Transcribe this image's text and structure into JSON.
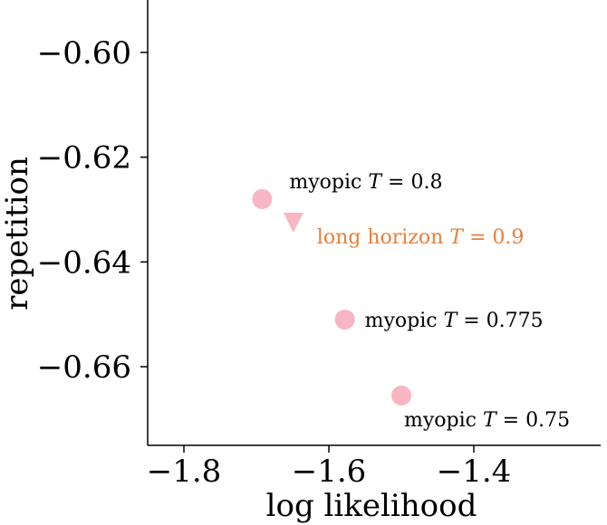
{
  "chart_data": {
    "type": "scatter",
    "xlabel": "log likelihood",
    "ylabel": "repetition",
    "xlim": [
      -1.85,
      -1.225
    ],
    "ylim": [
      -0.675,
      -0.59
    ],
    "xticks": [
      -1.8,
      -1.6,
      -1.4
    ],
    "xtick_labels": [
      "−1.8",
      "−1.6",
      "−1.4"
    ],
    "yticks": [
      -0.6,
      -0.62,
      -0.64,
      -0.66
    ],
    "ytick_labels": [
      "−0.60",
      "−0.62",
      "−0.64",
      "−0.66"
    ],
    "grid": false,
    "points": [
      {
        "x": -1.692,
        "y": -0.628,
        "marker": "circle",
        "color": "#f7b6c2",
        "label_prefix": "myopic ",
        "label_var": "T",
        "label_suffix": " = 0.8",
        "label_color": "#000000",
        "label_pos": "upper-right"
      },
      {
        "x": -1.649,
        "y": -0.6325,
        "marker": "triangle-down",
        "color": "#f7b6c2",
        "label_prefix": "long horizon ",
        "label_var": "T",
        "label_suffix": " = 0.9",
        "label_color": "#e8803a",
        "label_pos": "lower-right"
      },
      {
        "x": -1.578,
        "y": -0.651,
        "marker": "circle",
        "color": "#f7b6c2",
        "label_prefix": "myopic ",
        "label_var": "T",
        "label_suffix": " = 0.775",
        "label_color": "#000000",
        "label_pos": "right"
      },
      {
        "x": -1.5,
        "y": -0.6655,
        "marker": "circle",
        "color": "#f7b6c2",
        "label_prefix": "myopic ",
        "label_var": "T",
        "label_suffix": " = 0.75",
        "label_color": "#000000",
        "label_pos": "below"
      }
    ]
  }
}
